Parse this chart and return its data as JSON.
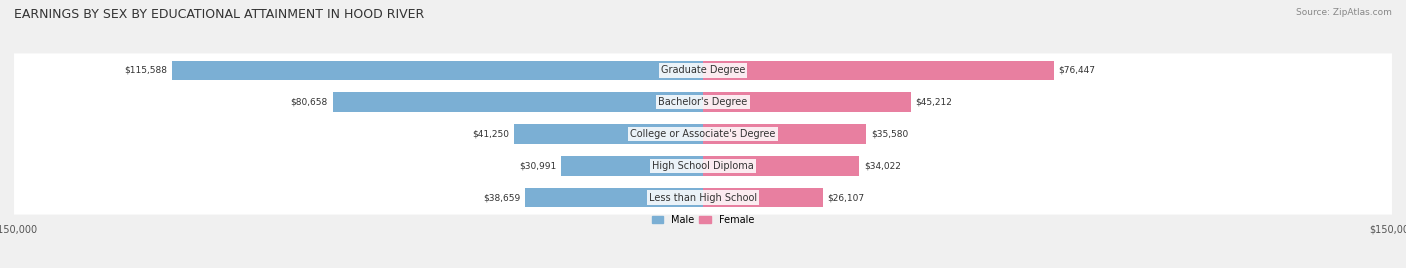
{
  "title": "EARNINGS BY SEX BY EDUCATIONAL ATTAINMENT IN HOOD RIVER",
  "source": "Source: ZipAtlas.com",
  "categories": [
    "Less than High School",
    "High School Diploma",
    "College or Associate's Degree",
    "Bachelor's Degree",
    "Graduate Degree"
  ],
  "male_values": [
    38659,
    30991,
    41250,
    80658,
    115588
  ],
  "female_values": [
    26107,
    34022,
    35580,
    45212,
    76447
  ],
  "male_color": "#7bafd4",
  "female_color": "#e87fa0",
  "bar_height": 0.62,
  "x_max": 150000,
  "background_color": "#f0f0f0",
  "row_bg_color": "#ffffff",
  "legend_male": "Male",
  "legend_female": "Female"
}
